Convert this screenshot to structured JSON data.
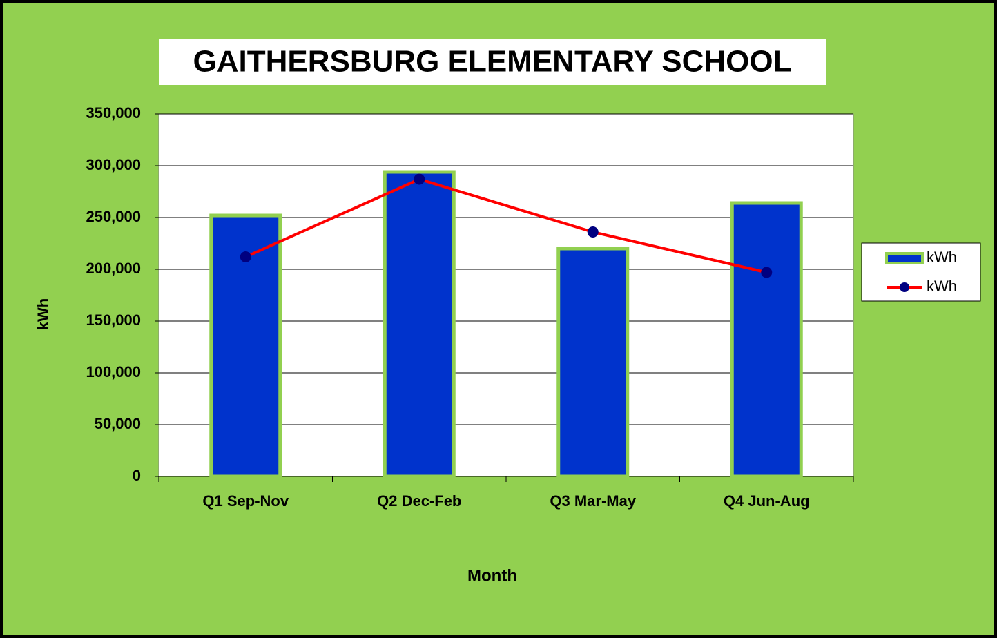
{
  "chart_data": {
    "type": "bar_line",
    "title": "GAITHERSBURG ELEMENTARY SCHOOL",
    "x_label": "Month",
    "y_label": "kWh",
    "categories": [
      "Q1 Sep-Nov",
      "Q2 Dec-Feb",
      "Q3 Mar-May",
      "Q4 Jun-Aug"
    ],
    "series": [
      {
        "name": "kWh",
        "type": "bar",
        "color": "#0033cc",
        "values": [
          252000,
          294000,
          220000,
          264000
        ]
      },
      {
        "name": "kWh",
        "type": "line",
        "color": "#ff0000",
        "marker_color": "#000080",
        "values": [
          212000,
          287000,
          236000,
          197000
        ]
      }
    ],
    "ylim": [
      0,
      350000
    ],
    "yticks": [
      0,
      {
        "value": 50000,
        "label": "50,000"
      },
      {
        "value": 100000,
        "label": "100,000"
      },
      {
        "value": 150000,
        "label": "150,000"
      },
      {
        "value": 200000,
        "label": "200,000"
      },
      {
        "value": 250000,
        "label": "250,000"
      },
      {
        "value": 300000,
        "label": "300,000"
      },
      {
        "value": 350000,
        "label": "350,000"
      }
    ],
    "grid": true,
    "legend": "right"
  }
}
